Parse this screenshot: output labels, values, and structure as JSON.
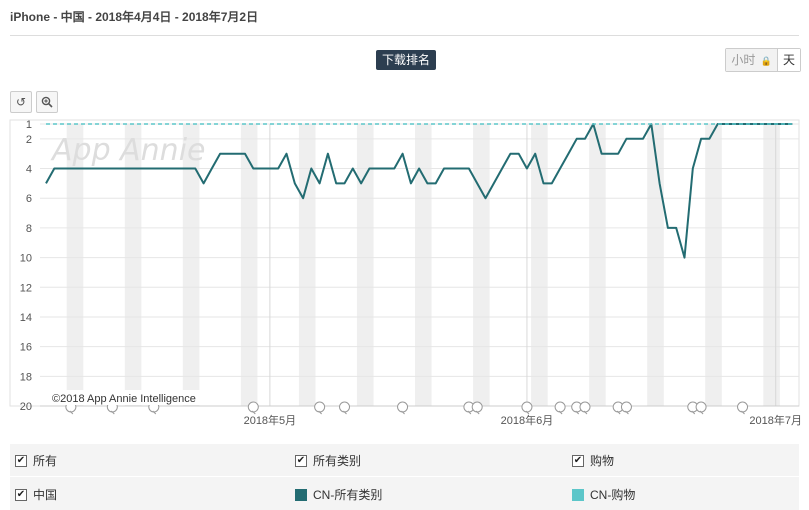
{
  "header": {
    "title": "iPhone - 中国 - 2018年4月4日 - 2018年7月2日"
  },
  "toolbar": {
    "metric_label": "下载排名",
    "granularity": [
      {
        "label": "小时",
        "locked": true,
        "active": false
      },
      {
        "label": "天",
        "locked": false,
        "active": true
      }
    ],
    "reset_icon": "undo-icon",
    "zoom_icon": "zoom-in-icon"
  },
  "chart_data": {
    "type": "line",
    "watermark": "App Annie",
    "credit": "©2018 App Annie Intelligence",
    "y_axis": {
      "reversed": true,
      "ylim": [
        1,
        20
      ],
      "ticks": [
        1,
        2,
        4,
        6,
        8,
        10,
        12,
        14,
        16,
        18,
        20
      ]
    },
    "x_axis": {
      "start": "2018-04-04",
      "end": "2018-07-02",
      "labels": [
        "2018年5月",
        "2018年6月",
        "2018年7月"
      ],
      "label_dates": [
        "2018-05-01",
        "2018-06-01",
        "2018-07-01"
      ]
    },
    "series": [
      {
        "name": "CN-所有类别",
        "color": "#236c72",
        "style": "solid",
        "values": [
          5,
          4,
          4,
          4,
          4,
          4,
          4,
          4,
          4,
          4,
          4,
          4,
          4,
          4,
          4,
          4,
          4,
          4,
          4,
          5,
          4,
          3,
          3,
          3,
          3,
          4,
          4,
          4,
          4,
          3,
          5,
          6,
          4,
          5,
          3,
          5,
          5,
          4,
          5,
          4,
          4,
          4,
          4,
          3,
          5,
          4,
          5,
          5,
          4,
          4,
          4,
          4,
          5,
          6,
          5,
          4,
          3,
          3,
          4,
          3,
          5,
          5,
          4,
          3,
          2,
          2,
          1,
          3,
          3,
          3,
          2,
          2,
          2,
          1,
          5,
          8,
          8,
          10,
          4,
          2,
          2,
          1,
          1,
          1,
          1,
          1,
          1,
          1,
          1,
          1,
          1
        ]
      },
      {
        "name": "CN-购物",
        "color": "#5cc6c9",
        "style": "dashed",
        "values": [
          1,
          1,
          1,
          1,
          1,
          1,
          1,
          1,
          1,
          1,
          1,
          1,
          1,
          1,
          1,
          1,
          1,
          1,
          1,
          1,
          1,
          1,
          1,
          1,
          1,
          1,
          1,
          1,
          1,
          1,
          1,
          1,
          1,
          1,
          1,
          1,
          1,
          1,
          1,
          1,
          1,
          1,
          1,
          1,
          1,
          1,
          1,
          1,
          1,
          1,
          1,
          1,
          1,
          1,
          1,
          1,
          1,
          1,
          1,
          1,
          1,
          1,
          1,
          1,
          1,
          1,
          1,
          1,
          1,
          1,
          1,
          1,
          1,
          1,
          1,
          1,
          1,
          1,
          1,
          1,
          1,
          1,
          1,
          1,
          1,
          1,
          1,
          1,
          1,
          1,
          1
        ]
      }
    ],
    "weekend_band_start_dates": [
      "2018-04-07",
      "2018-04-14",
      "2018-04-21",
      "2018-04-28",
      "2018-05-05",
      "2018-05-12",
      "2018-05-19",
      "2018-05-26",
      "2018-06-02",
      "2018-06-09",
      "2018-06-16",
      "2018-06-23",
      "2018-06-30"
    ],
    "event_marker_dates": [
      "2018-04-07",
      "2018-04-12",
      "2018-04-17",
      "2018-04-29",
      "2018-05-07",
      "2018-05-10",
      "2018-05-17",
      "2018-05-25",
      "2018-05-26",
      "2018-06-01",
      "2018-06-05",
      "2018-06-07",
      "2018-06-08",
      "2018-06-12",
      "2018-06-13",
      "2018-06-21",
      "2018-06-22",
      "2018-06-27"
    ],
    "grid": true
  },
  "legend": {
    "group_headers": [
      {
        "label": "所有",
        "checked": true
      },
      {
        "label": "所有类别",
        "checked": true
      },
      {
        "label": "购物",
        "checked": true
      }
    ],
    "country": {
      "label": "中国",
      "checked": true
    },
    "entries": [
      {
        "label": "CN-所有类别",
        "color": "#236c72"
      },
      {
        "label": "CN-购物",
        "color": "#5cc6c9"
      }
    ]
  }
}
